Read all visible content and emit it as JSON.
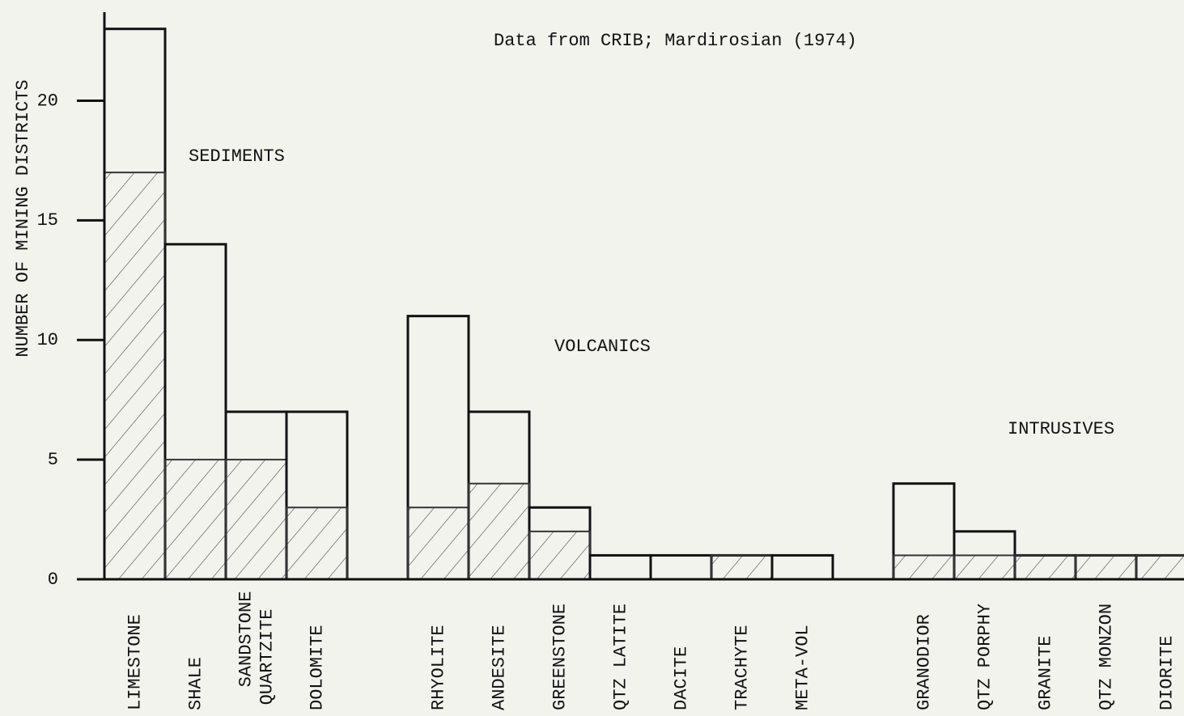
{
  "chart_data": {
    "type": "bar",
    "title": "Data from CRIB; Mardirosian (1974)",
    "y_label": "NUMBER OF MINING DISTRICTS",
    "annotations": [
      "SEDIMENTS",
      "VOLCANICS",
      "INTRUSIVES"
    ],
    "categories": [
      "LIMESTONE",
      "SHALE",
      [
        "SANDSTONE",
        "QUARTZITE"
      ],
      "DOLOMITE",
      "RHYOLITE",
      "ANDESITE",
      "GREENSTONE",
      "QTZ LATITE",
      "DACITE",
      "TRACHYTE",
      "META-VOL",
      "GRANODIOR",
      "QTZ PORPHY",
      "GRANITE",
      "QTZ MONZON",
      "DIORITE"
    ],
    "series": [
      {
        "color": "#111111",
        "values": [
          23,
          14,
          7,
          7,
          11,
          7,
          3,
          1,
          1,
          1,
          1,
          4,
          2,
          1,
          1,
          1
        ]
      },
      {
        "color": "#333333",
        "pattern": "hatch",
        "values": [
          17,
          5,
          5,
          3,
          3,
          4,
          2,
          0,
          0,
          1,
          0,
          1,
          1,
          1,
          1,
          1
        ]
      }
    ],
    "ylim": [
      0,
      23.7
    ],
    "yticks": [
      0,
      5,
      10,
      15,
      20
    ],
    "grid": false
  }
}
